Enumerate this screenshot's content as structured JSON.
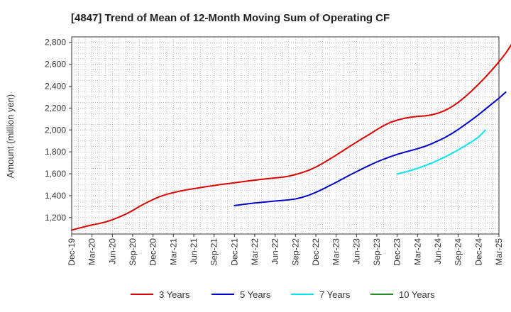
{
  "chart_data": {
    "type": "line",
    "title": "[4847]  Trend of Mean of 12-Month Moving Sum of Operating CF",
    "xlabel": "",
    "ylabel": "Amount (million yen)",
    "ylim": [
      1050,
      2850
    ],
    "yticks": [
      1200,
      1400,
      1600,
      1800,
      2000,
      2200,
      2400,
      2600,
      2800
    ],
    "ytick_labels": [
      "1,200",
      "1,400",
      "1,600",
      "1,800",
      "2,000",
      "2,200",
      "2,400",
      "2,600",
      "2,800"
    ],
    "x_tick_labels": [
      "Dec-19",
      "Mar-20",
      "Jun-20",
      "Sep-20",
      "Dec-20",
      "Mar-21",
      "Jun-21",
      "Sep-21",
      "Dec-21",
      "Mar-22",
      "Jun-22",
      "Sep-22",
      "Dec-22",
      "Mar-23",
      "Jun-23",
      "Sep-23",
      "Dec-23",
      "Mar-24",
      "Jun-24",
      "Sep-24",
      "Dec-24",
      "Mar-25"
    ],
    "grid": true,
    "legend_position": "bottom",
    "series": [
      {
        "name": "3 Years",
        "color": "#dd0000",
        "start_index": 0,
        "values": [
          1085,
          1102,
          1118,
          1133,
          1145,
          1160,
          1180,
          1205,
          1232,
          1265,
          1302,
          1335,
          1365,
          1392,
          1412,
          1428,
          1442,
          1454,
          1464,
          1474,
          1484,
          1493,
          1502,
          1510,
          1518,
          1526,
          1534,
          1542,
          1549,
          1556,
          1562,
          1568,
          1578,
          1593,
          1611,
          1633,
          1661,
          1695,
          1732,
          1770,
          1810,
          1850,
          1889,
          1927,
          1964,
          2003,
          2040,
          2069,
          2090,
          2106,
          2117,
          2124,
          2128,
          2137,
          2153,
          2177,
          2210,
          2252,
          2302,
          2358,
          2418,
          2482,
          2550,
          2622,
          2700,
          2795
        ]
      },
      {
        "name": "5 Years",
        "color": "#0000cc",
        "start_index": 24,
        "values": [
          1310,
          1318,
          1326,
          1333,
          1339,
          1345,
          1351,
          1356,
          1362,
          1370,
          1385,
          1405,
          1430,
          1459,
          1490,
          1522,
          1555,
          1588,
          1619,
          1650,
          1680,
          1708,
          1733,
          1756,
          1777,
          1795,
          1812,
          1829,
          1848,
          1872,
          1900,
          1930,
          1965,
          2005,
          2048,
          2093,
          2140,
          2190,
          2240,
          2290,
          2345
        ]
      },
      {
        "name": "7 Years",
        "color": "#00e5ee",
        "start_index": 48,
        "values": [
          1598,
          1613,
          1630,
          1650,
          1672,
          1696,
          1723,
          1752,
          1784,
          1818,
          1855,
          1893,
          1935,
          1998
        ]
      },
      {
        "name": "10 Years",
        "color": "#228b22",
        "start_index": 0,
        "values": []
      }
    ]
  }
}
